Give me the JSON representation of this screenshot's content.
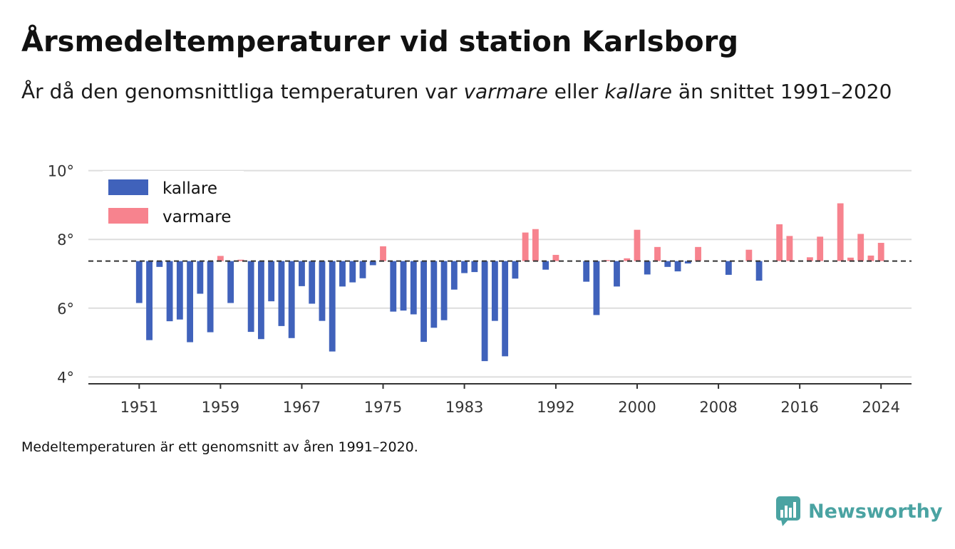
{
  "title_main": "Årsmedeltemperaturer vid station Karlsborg",
  "subtitle": {
    "part1": "År då den genomsnittliga temperaturen var ",
    "warm_word": "varmare",
    "part2": " eller ",
    "cold_word": "kallare",
    "part3": " än snittet 1991–2020"
  },
  "footnote": "Medeltemperaturen är ett genomsnitt av åren 1991–2020.",
  "brand": "Newsworthy",
  "colors": {
    "kallare": "#4062bb",
    "varmare": "#f7838e",
    "grid": "#dddddd",
    "baseline": "#333333"
  },
  "chart_data": {
    "type": "bar",
    "baseline": 7.37,
    "ylim": [
      3.8,
      10.2
    ],
    "yticks": [
      {
        "value": 4,
        "label": "4°"
      },
      {
        "value": 6,
        "label": "6°"
      },
      {
        "value": 8,
        "label": "8°"
      },
      {
        "value": 10,
        "label": "10°"
      }
    ],
    "xlim": [
      1946,
      2027
    ],
    "xticks": [
      {
        "value": 1951,
        "label": "1951"
      },
      {
        "value": 1959,
        "label": "1959"
      },
      {
        "value": 1967,
        "label": "1967"
      },
      {
        "value": 1975,
        "label": "1975"
      },
      {
        "value": 1983,
        "label": "1983"
      },
      {
        "value": 1992,
        "label": "1992"
      },
      {
        "value": 2000,
        "label": "2000"
      },
      {
        "value": 2008,
        "label": "2008"
      },
      {
        "value": 2016,
        "label": "2016"
      },
      {
        "value": 2024,
        "label": "2024"
      }
    ],
    "legend": [
      {
        "key": "kallare",
        "label": "kallare"
      },
      {
        "key": "varmare",
        "label": "varmare"
      }
    ],
    "legend_position": "top-left",
    "grid": true,
    "x": [
      1951,
      1952,
      1953,
      1954,
      1955,
      1956,
      1957,
      1958,
      1959,
      1960,
      1961,
      1962,
      1963,
      1964,
      1965,
      1966,
      1967,
      1968,
      1969,
      1970,
      1971,
      1972,
      1973,
      1974,
      1975,
      1976,
      1977,
      1978,
      1979,
      1980,
      1981,
      1982,
      1983,
      1984,
      1985,
      1986,
      1987,
      1988,
      1989,
      1990,
      1991,
      1992,
      1993,
      1994,
      1995,
      1996,
      1997,
      1998,
      1999,
      2000,
      2001,
      2002,
      2003,
      2004,
      2005,
      2006,
      2007,
      2008,
      2009,
      2010,
      2011,
      2012,
      2013,
      2014,
      2015,
      2016,
      2017,
      2018,
      2019,
      2020,
      2021,
      2022,
      2023,
      2024
    ],
    "values": [
      6.15,
      5.07,
      7.2,
      5.62,
      5.67,
      5.01,
      6.42,
      5.3,
      7.52,
      6.15,
      7.41,
      5.31,
      5.1,
      6.2,
      5.48,
      5.13,
      6.64,
      6.13,
      5.63,
      4.74,
      6.63,
      6.75,
      6.87,
      7.25,
      7.8,
      5.9,
      5.93,
      5.82,
      5.02,
      5.43,
      5.65,
      6.54,
      7.02,
      7.05,
      4.46,
      5.63,
      4.6,
      6.86,
      8.2,
      8.3,
      7.12,
      7.55,
      7.37,
      7.37,
      6.77,
      5.8,
      7.4,
      6.63,
      7.45,
      8.28,
      6.98,
      7.78,
      7.2,
      7.07,
      7.3,
      7.78,
      7.37,
      7.37,
      6.97,
      7.37,
      7.7,
      6.8,
      7.37,
      8.44,
      8.1,
      7.37,
      7.48,
      8.08,
      7.37,
      9.05,
      7.47,
      8.16,
      7.53,
      7.9
    ]
  }
}
